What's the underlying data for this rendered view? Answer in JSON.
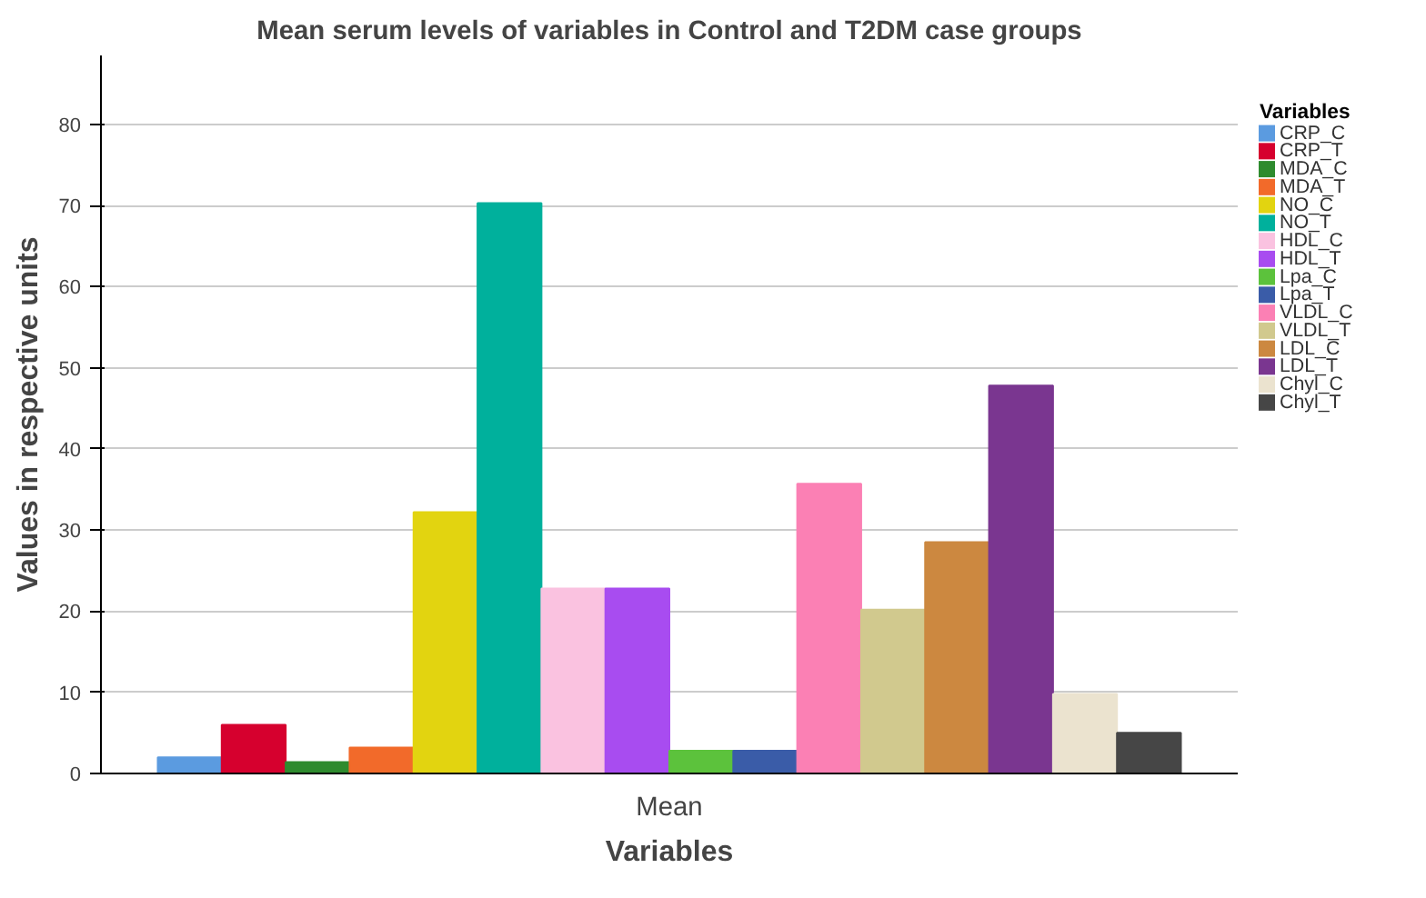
{
  "chart_data": {
    "type": "bar",
    "title": "Mean serum levels of variables in Control and T2DM case groups",
    "xlabel": "Variables",
    "ylabel": "Values in respective units",
    "legend_title": "Variables",
    "categories": [
      "Mean"
    ],
    "ylim": [
      0,
      88.5
    ],
    "yticks": [
      0,
      10,
      20,
      30,
      40,
      50,
      60,
      70,
      80
    ],
    "grid": "y",
    "legend": "right",
    "series": [
      {
        "name": "CRP_C",
        "color": "#5b9be0",
        "values": [
          2.0
        ]
      },
      {
        "name": "CRP_T",
        "color": "#d6002e",
        "values": [
          6.0
        ]
      },
      {
        "name": "MDA_C",
        "color": "#2e8b2e",
        "values": [
          1.4
        ]
      },
      {
        "name": "MDA_T",
        "color": "#f26a2a",
        "values": [
          3.2
        ]
      },
      {
        "name": "NO_C",
        "color": "#e2d410",
        "values": [
          32.2
        ]
      },
      {
        "name": "NO_T",
        "color": "#00b09c",
        "values": [
          70.3
        ]
      },
      {
        "name": "HDL_C",
        "color": "#fac2e0",
        "values": [
          22.8
        ]
      },
      {
        "name": "HDL_T",
        "color": "#a84cf0",
        "values": [
          22.8
        ]
      },
      {
        "name": "Lpa_C",
        "color": "#5cc23c",
        "values": [
          2.8
        ]
      },
      {
        "name": "Lpa_T",
        "color": "#3a5ca8",
        "values": [
          2.8
        ]
      },
      {
        "name": "VLDL_C",
        "color": "#fb80b4",
        "values": [
          35.7
        ]
      },
      {
        "name": "VLDL_T",
        "color": "#d1c98e",
        "values": [
          20.2
        ]
      },
      {
        "name": "LDL_C",
        "color": "#cc8840",
        "values": [
          28.5
        ]
      },
      {
        "name": "LDL_T",
        "color": "#7a3690",
        "values": [
          47.8
        ]
      },
      {
        "name": "Chyl_C",
        "color": "#ebe3cf",
        "values": [
          9.8
        ]
      },
      {
        "name": "Chyl_T",
        "color": "#464646",
        "values": [
          5.0
        ]
      }
    ]
  }
}
